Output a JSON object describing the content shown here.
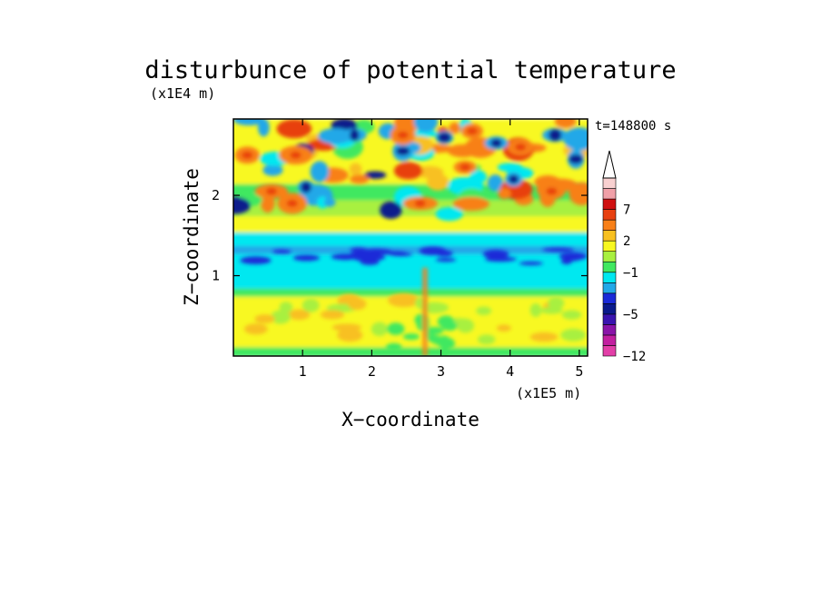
{
  "chart_data": {
    "type": "heatmap",
    "title": "disturbunce of potential temperature",
    "time_label": "t=148800 s",
    "xlabel": "X−coordinate",
    "ylabel": "Z−coordinate",
    "x_scale_label": "(x1E5 m)",
    "y_scale_label": "(x1E4 m)",
    "x_range": [
      0,
      5.12
    ],
    "y_range": [
      0,
      2.95
    ],
    "x_ticks": [
      "1",
      "2",
      "3",
      "4",
      "5"
    ],
    "y_ticks": [
      "1",
      "2"
    ],
    "colorbar": {
      "labels": [
        "7",
        "2",
        "−1",
        "−5",
        "−12"
      ],
      "label_values": [
        7,
        2,
        -1,
        -5,
        -12
      ],
      "levels": [
        -12,
        -10,
        -8,
        -6,
        -5,
        -4,
        -3,
        -2,
        -1,
        0,
        1,
        2,
        3,
        5,
        7,
        9
      ],
      "colors": [
        "#e33fa8",
        "#c21fa0",
        "#8a14a8",
        "#3a14b0",
        "#0a1a8c",
        "#1a2ad8",
        "#22a8e8",
        "#00e8f0",
        "#40e860",
        "#a8f040",
        "#f8f820",
        "#f8c020",
        "#f88018",
        "#e84010",
        "#d01010",
        "#f0a0a8",
        "#f8d0d0"
      ],
      "extend_max": true
    },
    "grid": false
  }
}
